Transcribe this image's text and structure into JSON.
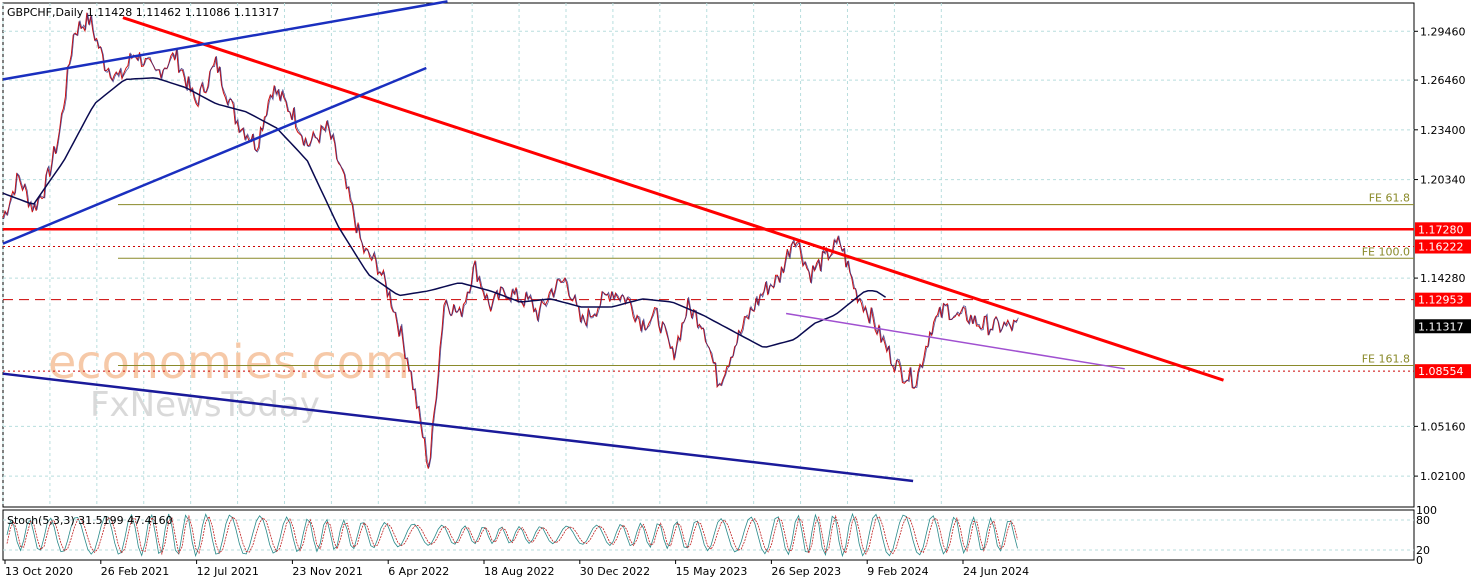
{
  "chart_data": {
    "type": "line",
    "symbol_header": "GBPCHF,Daily  1.11428 1.11462 1.11086 1.11317",
    "watermark_line1": "economies.com",
    "watermark_line2": "FxNewsToday",
    "price_axis": {
      "ylim": [
        1.002,
        1.312
      ],
      "ticks": [
        "1.29460",
        "1.26460",
        "1.23400",
        "1.20340",
        "1.14280",
        "1.05160",
        "1.02100"
      ],
      "tick_values": [
        1.2946,
        1.2646,
        1.234,
        1.2034,
        1.1428,
        1.0516,
        1.021
      ],
      "grid": true
    },
    "time_axis": {
      "labels": [
        "13 Oct 2020",
        "26 Feb 2021",
        "12 Jul 2021",
        "23 Nov 2021",
        "6 Apr 2022",
        "18 Aug 2022",
        "30 Dec 2022",
        "15 May 2023",
        "26 Sep 2023",
        "9 Feb 2024",
        "24 Jun 2024"
      ],
      "t_range": [
        0,
        1.0
      ]
    },
    "price_path": {
      "t": [
        0.0,
        0.015,
        0.03,
        0.042,
        0.055,
        0.07,
        0.085,
        0.1,
        0.115,
        0.13,
        0.15,
        0.17,
        0.19,
        0.21,
        0.23,
        0.25,
        0.265,
        0.285,
        0.3,
        0.32,
        0.335,
        0.355,
        0.37,
        0.385,
        0.4,
        0.42,
        0.435,
        0.45,
        0.465,
        0.48,
        0.495,
        0.51,
        0.52,
        0.528,
        0.54,
        0.555,
        0.57,
        0.585,
        0.6,
        0.615,
        0.63,
        0.645,
        0.66,
        0.675,
        0.69,
        0.705,
        0.72,
        0.735,
        0.75,
        0.765,
        0.78,
        0.795,
        0.81,
        0.825,
        0.84,
        0.855,
        0.87,
        0.885,
        0.9,
        0.915,
        0.93,
        0.94,
        0.95,
        0.96,
        0.975,
        0.99,
        1.0
      ],
      "y": [
        1.18,
        1.205,
        1.185,
        1.2,
        1.23,
        1.295,
        1.302,
        1.275,
        1.265,
        1.282,
        1.268,
        1.28,
        1.25,
        1.275,
        1.24,
        1.225,
        1.26,
        1.245,
        1.225,
        1.235,
        1.205,
        1.16,
        1.15,
        1.125,
        1.09,
        1.025,
        1.13,
        1.12,
        1.15,
        1.125,
        1.135,
        1.13,
        1.128,
        1.12,
        1.135,
        1.142,
        1.115,
        1.125,
        1.135,
        1.13,
        1.115,
        1.12,
        1.095,
        1.125,
        1.115,
        1.078,
        1.1,
        1.12,
        1.135,
        1.143,
        1.17,
        1.145,
        1.155,
        1.165,
        1.135,
        1.12,
        1.1,
        1.085,
        1.08,
        1.113,
        1.125,
        1.118,
        1.12,
        1.115,
        1.1132,
        1.1131,
        1.1132
      ]
    },
    "moving_average": {
      "t": [
        0.0,
        0.03,
        0.06,
        0.09,
        0.12,
        0.15,
        0.18,
        0.21,
        0.24,
        0.27,
        0.3,
        0.33,
        0.36,
        0.39,
        0.42,
        0.45,
        0.48,
        0.51,
        0.54,
        0.57,
        0.6,
        0.63,
        0.66,
        0.69,
        0.72,
        0.75,
        0.78,
        0.8,
        0.82,
        0.84,
        0.85,
        0.86,
        0.87
      ],
      "y": [
        1.195,
        1.188,
        1.215,
        1.25,
        1.265,
        1.266,
        1.26,
        1.25,
        1.245,
        1.235,
        1.215,
        1.175,
        1.145,
        1.132,
        1.135,
        1.14,
        1.135,
        1.128,
        1.13,
        1.125,
        1.125,
        1.13,
        1.128,
        1.12,
        1.11,
        1.1,
        1.105,
        1.115,
        1.12,
        1.13,
        1.135,
        1.135,
        1.131
      ]
    },
    "levels": [
      {
        "label": "1.17280",
        "value": 1.1728,
        "style": "solid",
        "color": "#ff0000"
      },
      {
        "label": "1.16222",
        "value": 1.16222,
        "style": "dotted",
        "color": "#cc0000"
      },
      {
        "label": "1.12953",
        "value": 1.12953,
        "style": "dashed",
        "color": "#cc0000"
      },
      {
        "label": "1.11317",
        "value": 1.11317,
        "style": "current",
        "color": "#000000"
      },
      {
        "label": "1.08554",
        "value": 1.08554,
        "style": "dotted",
        "color": "#cc0000"
      }
    ],
    "fibonacci": [
      {
        "label": "FE 61.8",
        "value": 1.188
      },
      {
        "label": "FE 100.0",
        "value": 1.155
      },
      {
        "label": "FE 161.8",
        "value": 1.089
      }
    ],
    "trendlines": [
      {
        "name": "red-downtrend",
        "t1": 0.085,
        "y1": 1.303,
        "t2": 0.865,
        "y2": 1.08,
        "color": "#ff0000"
      },
      {
        "name": "blue-upper-channel",
        "t1": 0.0,
        "y1": 1.265,
        "t2": 0.315,
        "y2": 1.313,
        "color": "#1a2fbf"
      },
      {
        "name": "blue-lower-channel",
        "t1": 0.0,
        "y1": 1.164,
        "t2": 0.3,
        "y2": 1.272,
        "color": "#1a2fbf"
      },
      {
        "name": "navy-support",
        "t1": 0.0,
        "y1": 1.084,
        "t2": 0.645,
        "y2": 1.018,
        "color": "#1a1a9a"
      },
      {
        "name": "purple-support",
        "t1": 0.555,
        "y1": 1.121,
        "t2": 0.795,
        "y2": 1.087,
        "color": "#a050d0"
      }
    ],
    "stochastic": {
      "label": "Stoch(5,3,3) 31.5199 47.4160",
      "k": 31.5199,
      "d": 47.416,
      "ylim": [
        0,
        100
      ],
      "levels": [
        80,
        20
      ],
      "axis_labels": [
        "100",
        "80",
        "20",
        "0"
      ]
    }
  }
}
